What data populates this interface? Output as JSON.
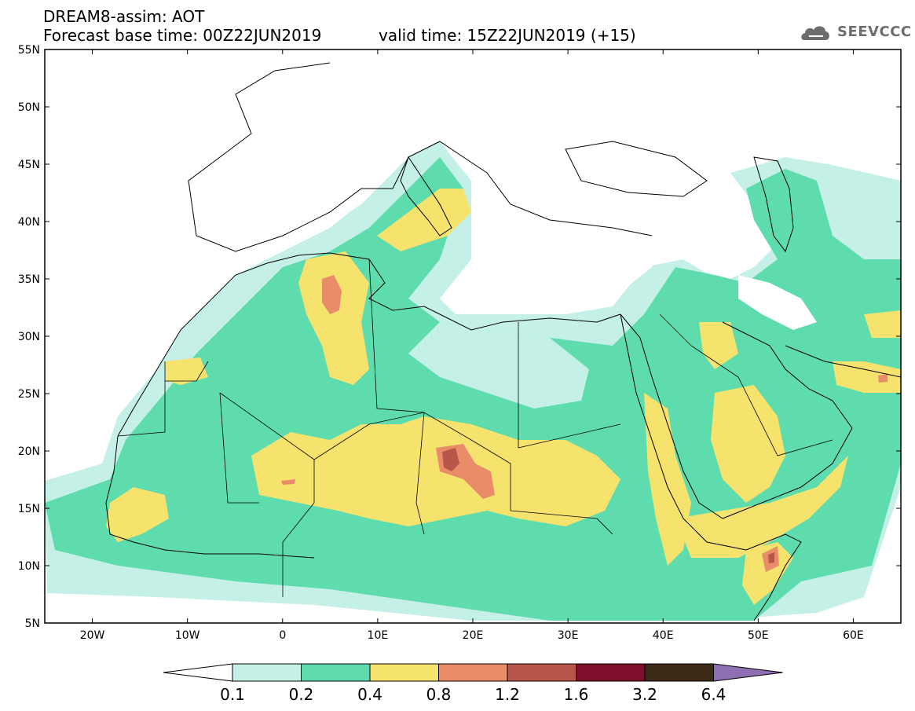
{
  "header": {
    "title": "DREAM8-assim: AOT",
    "base_time": "Forecast base time: 00Z22JUN2019",
    "valid_time": "valid time: 15Z22JUN2019 (+15)"
  },
  "logo": {
    "text": "SEEVCCC",
    "icon": "cloud-logo-icon"
  },
  "map": {
    "lon_range": [
      -25,
      65
    ],
    "lat_range": [
      5,
      55
    ],
    "lat_ticks": [
      {
        "lat": 55,
        "label": "55N"
      },
      {
        "lat": 50,
        "label": "50N"
      },
      {
        "lat": 45,
        "label": "45N"
      },
      {
        "lat": 40,
        "label": "40N"
      },
      {
        "lat": 35,
        "label": "35N"
      },
      {
        "lat": 30,
        "label": "30N"
      },
      {
        "lat": 25,
        "label": "25N"
      },
      {
        "lat": 20,
        "label": "20N"
      },
      {
        "lat": 15,
        "label": "15N"
      },
      {
        "lat": 10,
        "label": "10N"
      },
      {
        "lat": 5,
        "label": "5N"
      }
    ],
    "lon_ticks": [
      {
        "lon": -20,
        "label": "20W"
      },
      {
        "lon": -10,
        "label": "10W"
      },
      {
        "lon": 0,
        "label": "0"
      },
      {
        "lon": 10,
        "label": "10E"
      },
      {
        "lon": 20,
        "label": "20E"
      },
      {
        "lon": 30,
        "label": "30E"
      },
      {
        "lon": 40,
        "label": "40E"
      },
      {
        "lon": 50,
        "label": "50E"
      },
      {
        "lon": 60,
        "label": "60E"
      }
    ],
    "colors": {
      "c01": "#c4f0e8",
      "c02": "#5edcae",
      "c04": "#f5e36e",
      "c08": "#e88c6a",
      "c12": "#b9564a",
      "c16": "#7e0f2b",
      "c32": "#3c2a17",
      "c64": "#8f6fb4"
    }
  },
  "legend": {
    "boxes": [
      {
        "color": "#ffffff"
      },
      {
        "color": "#c4f0e8"
      },
      {
        "color": "#5edcae"
      },
      {
        "color": "#f5e36e"
      },
      {
        "color": "#e88c6a"
      },
      {
        "color": "#b9564a"
      },
      {
        "color": "#7e0f2b"
      },
      {
        "color": "#3c2a17"
      },
      {
        "color": "#8f6fb4"
      }
    ],
    "labels": [
      "0.1",
      "0.2",
      "0.4",
      "0.8",
      "1.2",
      "1.6",
      "3.2",
      "6.4"
    ]
  }
}
